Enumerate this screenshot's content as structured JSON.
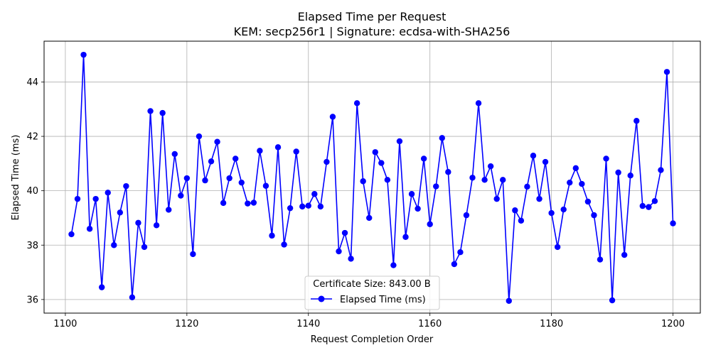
{
  "chart_data": {
    "type": "line",
    "title": "Elapsed Time per Request",
    "subtitle": "KEM: secp256r1 | Signature: ecdsa-with-SHA256",
    "xlabel": "Request Completion Order",
    "ylabel": "Elapsed Time (ms)",
    "xlim": [
      1096.5,
      1204.5
    ],
    "ylim": [
      35.5,
      45.5
    ],
    "xticks": [
      1100,
      1120,
      1140,
      1160,
      1180,
      1200
    ],
    "yticks": [
      36,
      38,
      40,
      42,
      44
    ],
    "grid": true,
    "legend": {
      "title": "Certificate Size: 843.00 B",
      "placement": "lower-center"
    },
    "series": [
      {
        "name": "Elapsed Time (ms)",
        "color": "#0000ff",
        "marker": "circle",
        "x_start": 1101,
        "x_step": 1,
        "values": [
          38.4,
          39.7,
          45.0,
          38.6,
          39.7,
          36.45,
          39.93,
          38.0,
          39.2,
          40.17,
          36.08,
          38.82,
          37.93,
          42.93,
          38.73,
          42.86,
          39.3,
          41.35,
          39.82,
          40.46,
          37.67,
          42.0,
          40.38,
          41.08,
          41.8,
          39.55,
          40.46,
          41.18,
          40.3,
          39.53,
          39.56,
          41.47,
          40.18,
          38.35,
          41.6,
          38.02,
          39.36,
          41.44,
          39.42,
          39.45,
          39.88,
          39.42,
          41.06,
          42.72,
          37.77,
          38.45,
          37.5,
          43.22,
          40.35,
          39.0,
          41.42,
          41.02,
          40.4,
          37.26,
          41.82,
          38.3,
          39.88,
          39.34,
          41.18,
          38.77,
          40.16,
          41.94,
          40.69,
          37.3,
          37.74,
          39.1,
          40.48,
          43.22,
          40.4,
          40.9,
          39.7,
          40.4,
          35.95,
          39.28,
          38.9,
          40.15,
          41.29,
          39.7,
          41.06,
          39.18,
          37.93,
          39.31,
          40.3,
          40.83,
          40.25,
          39.6,
          39.1,
          37.47,
          41.18,
          35.97,
          40.67,
          37.64,
          40.56,
          42.57,
          39.44,
          39.4,
          39.62,
          40.76,
          44.37,
          38.8
        ]
      }
    ]
  }
}
